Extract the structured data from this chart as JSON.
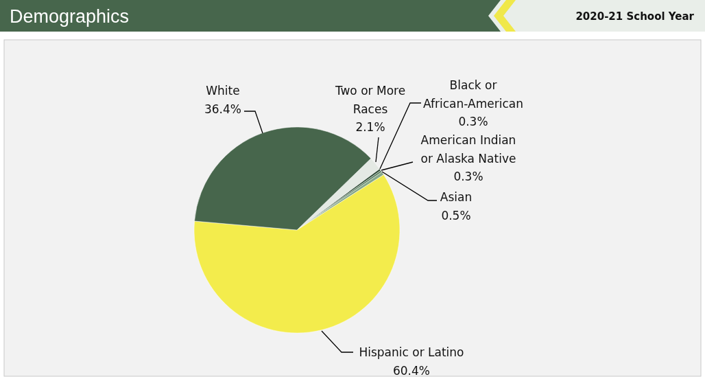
{
  "chart_data": {
    "type": "pie",
    "title": "Demographics",
    "subtitle": "2020-21 School Year",
    "categories": [
      "Two or More Races",
      "Black or African-American",
      "American Indian or Alaska Native",
      "Asian",
      "Hispanic or Latino",
      "White"
    ],
    "values": [
      2.1,
      0.3,
      0.3,
      0.5,
      60.4,
      36.4
    ],
    "value_labels": [
      "2.1%",
      "0.3%",
      "0.3%",
      "0.5%",
      "60.4%",
      "36.4%"
    ],
    "colors": [
      "#e4e9e4",
      "#2e4a35",
      "#5d8064",
      "#86a88a",
      "#f3ec4c",
      "#47664c"
    ]
  }
}
